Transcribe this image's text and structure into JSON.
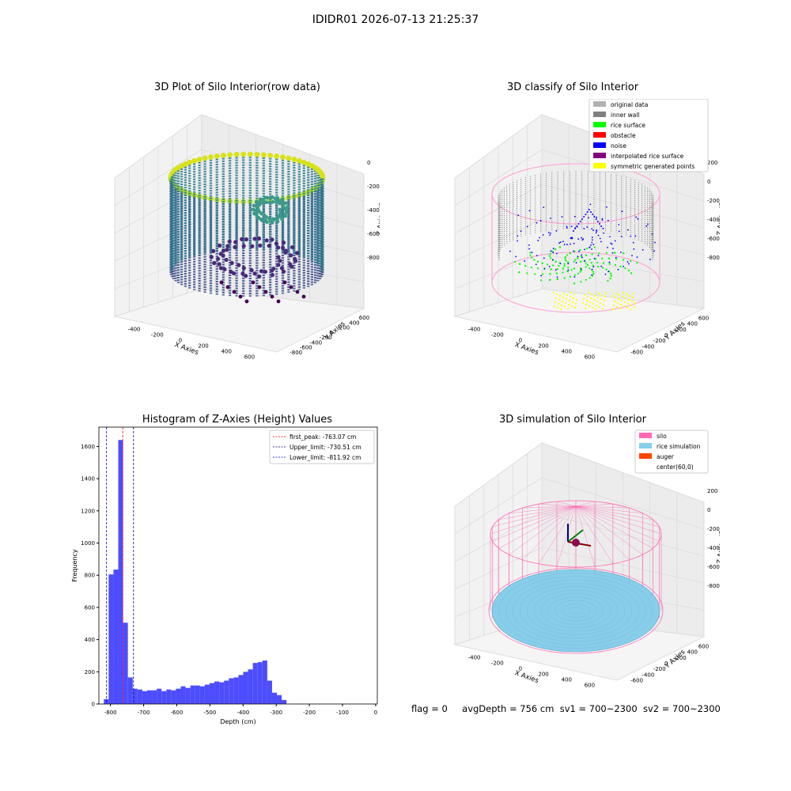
{
  "window_title": "IDIDR01 2026-07-13 21:25:37",
  "colors": {
    "original_data": "#b0b0b0",
    "inner_wall": "#808080",
    "rice_surface": "#00ff00",
    "obstacle": "#ff0000",
    "noise": "#0000ff",
    "interpolated_rice_surface": "#800080",
    "symmetric_generated_points": "#ffff00",
    "silo": "#ff69b4",
    "rice_simulation": "#87ceeb",
    "auger": "#ff4500",
    "hist_bar": "#4d4dff"
  },
  "plot1": {
    "title": "3D Plot of Silo Interior(row data)",
    "xlabel": "X Axies",
    "ylabel": "Y Axies",
    "zlabel": "Z Axies (Depth)",
    "xticks": [
      "-400",
      "-200",
      "0",
      "200",
      "400",
      "600"
    ],
    "yticks": [
      "-800",
      "-600",
      "-400",
      "-200",
      "0",
      "200",
      "400",
      "600"
    ],
    "zticks": [
      "0",
      "-200",
      "-400",
      "-600",
      "-800"
    ]
  },
  "plot2": {
    "title": "3D classify of Silo Interior",
    "xlabel": "X Axies",
    "ylabel": "Y Axies",
    "zlabel": "Z Axies (Depth)",
    "xticks": [
      "-400",
      "-200",
      "0",
      "200",
      "400",
      "600"
    ],
    "yticks": [
      "-600",
      "-400",
      "-200",
      "0",
      "200",
      "400",
      "600"
    ],
    "zticks": [
      "200",
      "0",
      "-200",
      "-400",
      "-600",
      "-800"
    ],
    "legend": [
      {
        "label": "original data",
        "color": "#b0b0b0"
      },
      {
        "label": "inner wall",
        "color": "#808080"
      },
      {
        "label": "rice surface",
        "color": "#00ff00"
      },
      {
        "label": "obstacle",
        "color": "#ff0000"
      },
      {
        "label": "noise",
        "color": "#0000ff"
      },
      {
        "label": "interpolated rice surface",
        "color": "#800080"
      },
      {
        "label": "symmetric generated points",
        "color": "#ffff00"
      }
    ]
  },
  "plot4": {
    "title": "3D simulation of Silo Interior",
    "xlabel": "X Axies",
    "ylabel": "Y Axies",
    "zlabel": "Z Axies (Depth)",
    "xticks": [
      "-400",
      "-200",
      "0",
      "200",
      "400",
      "600"
    ],
    "yticks": [
      "-600",
      "-400",
      "-200",
      "0",
      "200",
      "400",
      "600"
    ],
    "zticks": [
      "200",
      "0",
      "-200",
      "-400",
      "-600",
      "-800"
    ],
    "legend": [
      {
        "label": "silo",
        "color": "#ff69b4"
      },
      {
        "label": "rice simulation",
        "color": "#87ceeb"
      },
      {
        "label": "auger",
        "color": "#ff4500"
      },
      {
        "label": "center(60,0)",
        "color": ""
      }
    ]
  },
  "footer": {
    "flag": "flag = 0",
    "avg": "avgDepth = 756 cm",
    "sv1": "sv1 = 700~2300",
    "sv2": "sv2 = 700~2300"
  },
  "chart_data": [
    {
      "type": "bar",
      "title": "Histogram of Z-Axies (Height) Values",
      "xlabel": "Depth (cm)",
      "ylabel": "Frequency",
      "xlim": [
        -835,
        5
      ],
      "ylim": [
        0,
        1720
      ],
      "xticks": [
        -800,
        -700,
        -600,
        -500,
        -400,
        -300,
        -200,
        -100,
        0
      ],
      "yticks": [
        0,
        200,
        400,
        600,
        800,
        1000,
        1200,
        1400,
        1600
      ],
      "bin_start": -820,
      "bin_width": 14.5,
      "values": [
        30,
        805,
        835,
        1640,
        505,
        165,
        95,
        90,
        80,
        85,
        85,
        95,
        80,
        90,
        85,
        95,
        110,
        100,
        115,
        115,
        110,
        120,
        130,
        140,
        135,
        145,
        160,
        165,
        180,
        200,
        215,
        255,
        260,
        270,
        145,
        70,
        55,
        25
      ],
      "vlines": [
        {
          "label": "first_peak: -763.07 cm",
          "x": -763.07,
          "color": "#ff0000"
        },
        {
          "label": "Upper_limit: -730.51 cm",
          "x": -730.51,
          "color": "#00008b"
        },
        {
          "label": "Lower_limit: -811.92 cm",
          "x": -811.92,
          "color": "#0000ff"
        }
      ]
    }
  ]
}
